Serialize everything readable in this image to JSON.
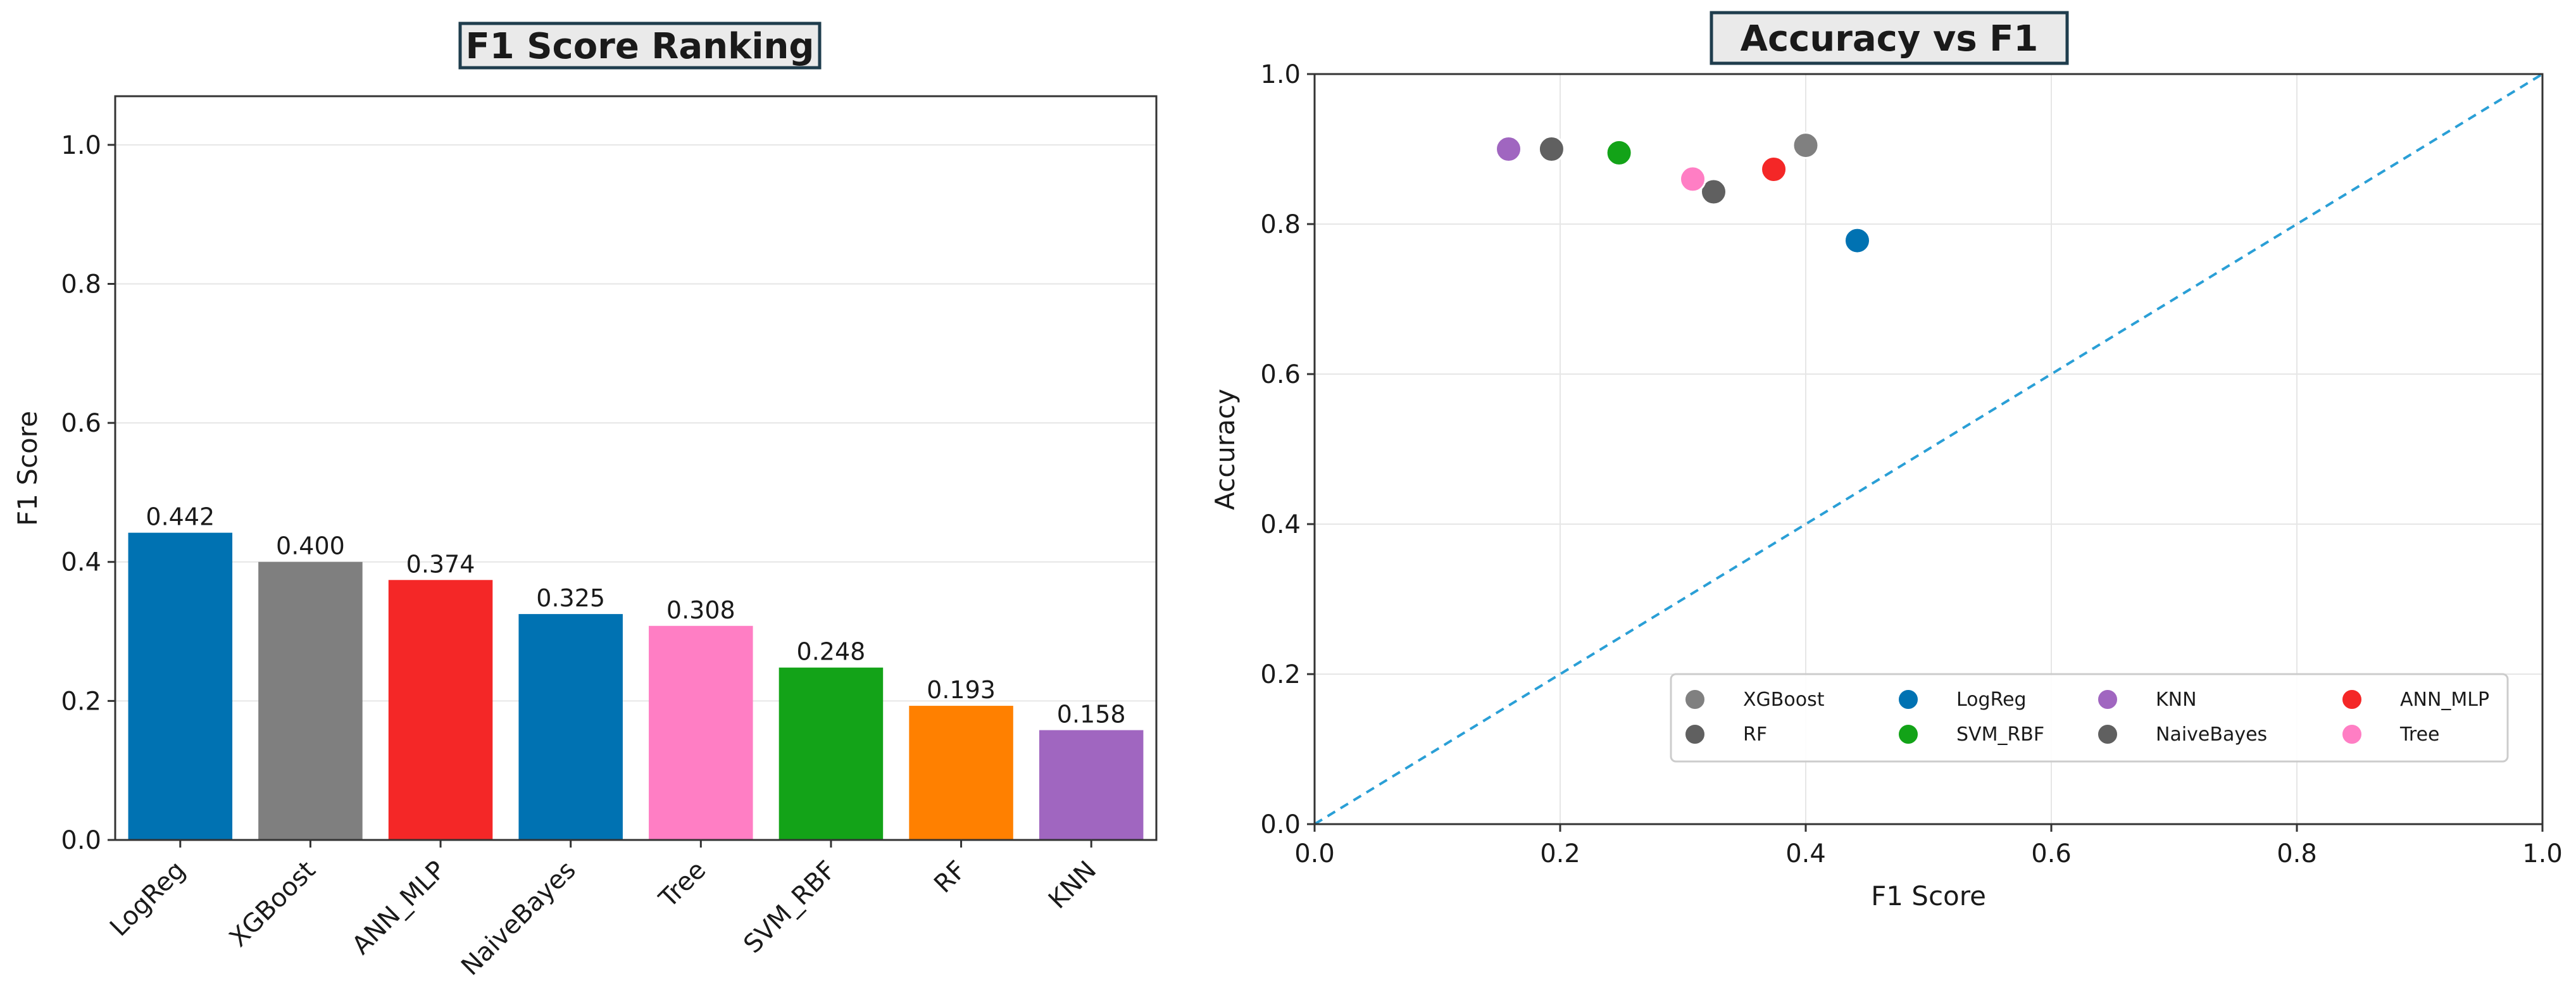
{
  "chart_data": [
    {
      "type": "bar",
      "title": "F1 Score Ranking",
      "xlabel": "",
      "ylabel": "F1 Score",
      "ylim": [
        0,
        1.07
      ],
      "yticks": [
        "0.0",
        "0.2",
        "0.4",
        "0.6",
        "0.8",
        "1.0"
      ],
      "grid": "horizontal",
      "categories": [
        "LogReg",
        "XGBoost",
        "ANN_MLP",
        "NaiveBayes",
        "Tree",
        "SVM_RBF",
        "RF",
        "KNN"
      ],
      "values": [
        0.442,
        0.4,
        0.374,
        0.325,
        0.308,
        0.248,
        0.193,
        0.158
      ],
      "value_labels": [
        "0.442",
        "0.400",
        "0.374",
        "0.325",
        "0.308",
        "0.248",
        "0.193",
        "0.158"
      ],
      "colors": [
        "#0072b2",
        "#7f7f7f",
        "#f42727",
        "#0072b2",
        "#ff7ec4",
        "#13a318",
        "#ff8000",
        "#a066c0"
      ]
    },
    {
      "type": "scatter",
      "title": "Accuracy vs F1",
      "xlabel": "F1 Score",
      "ylabel": "Accuracy",
      "xlim": [
        0,
        1
      ],
      "ylim": [
        0,
        1
      ],
      "xticks": [
        "0.0",
        "0.2",
        "0.4",
        "0.6",
        "0.8",
        "1.0"
      ],
      "yticks": [
        "0.0",
        "0.2",
        "0.4",
        "0.6",
        "0.8",
        "1.0"
      ],
      "grid": true,
      "reference_line": {
        "style": "dashed",
        "color": "#2a9fd6",
        "from": [
          0,
          0
        ],
        "to": [
          1,
          1
        ]
      },
      "legend": {
        "placement": "lower-right",
        "columns": 4
      },
      "series": [
        {
          "name": "XGBoost",
          "color": "#808080",
          "x": 0.4,
          "y": 0.905
        },
        {
          "name": "RF",
          "color": "#606060",
          "x": 0.193,
          "y": 0.9
        },
        {
          "name": "LogReg",
          "color": "#0072b2",
          "x": 0.442,
          "y": 0.778
        },
        {
          "name": "SVM_RBF",
          "color": "#13a318",
          "x": 0.248,
          "y": 0.895
        },
        {
          "name": "KNN",
          "color": "#a066c0",
          "x": 0.158,
          "y": 0.9
        },
        {
          "name": "NaiveBayes",
          "color": "#606060",
          "x": 0.325,
          "y": 0.843
        },
        {
          "name": "ANN_MLP",
          "color": "#f42727",
          "x": 0.374,
          "y": 0.873
        },
        {
          "name": "Tree",
          "color": "#ff7ec4",
          "x": 0.308,
          "y": 0.86
        }
      ]
    }
  ]
}
